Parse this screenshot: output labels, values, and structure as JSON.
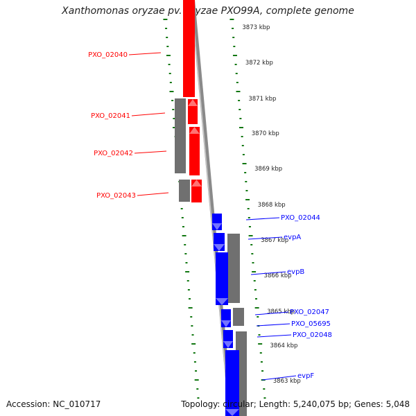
{
  "header": {
    "title": "Xanthomonas oryzae pv. oryzae PXO99A, complete genome"
  },
  "footer": {
    "accession_label": "Accession:",
    "accession": "NC_010717",
    "topology_label": "Topology:",
    "topology": "circular;",
    "length_label": "Length:",
    "length": "5,240,075 bp;",
    "genes_label": "Genes:",
    "genes": "5,048"
  },
  "scale": {
    "unit": "kbp",
    "ticks": [
      "3873",
      "3872",
      "3871",
      "3870",
      "3869",
      "3868",
      "3867",
      "3866",
      "3865",
      "3864",
      "3863"
    ]
  },
  "colors": {
    "forward_strand": "#ff0000",
    "reverse_strand": "#0000ff",
    "gc_track": "#707070",
    "backbone": "#8a8a8a",
    "tick_marks": "#117711"
  },
  "genes": {
    "forward": [
      {
        "label": "PXO_02040"
      },
      {
        "label": "PXO_02041"
      },
      {
        "label": "PXO_02042"
      },
      {
        "label": "PXO_02043"
      }
    ],
    "reverse": [
      {
        "label": "PXO_02044"
      },
      {
        "label": "evpA"
      },
      {
        "label": "evpB"
      },
      {
        "label": "PXO_02047"
      },
      {
        "label": "PXO_05695"
      },
      {
        "label": "PXO_02048"
      },
      {
        "label": "evpF"
      }
    ]
  }
}
